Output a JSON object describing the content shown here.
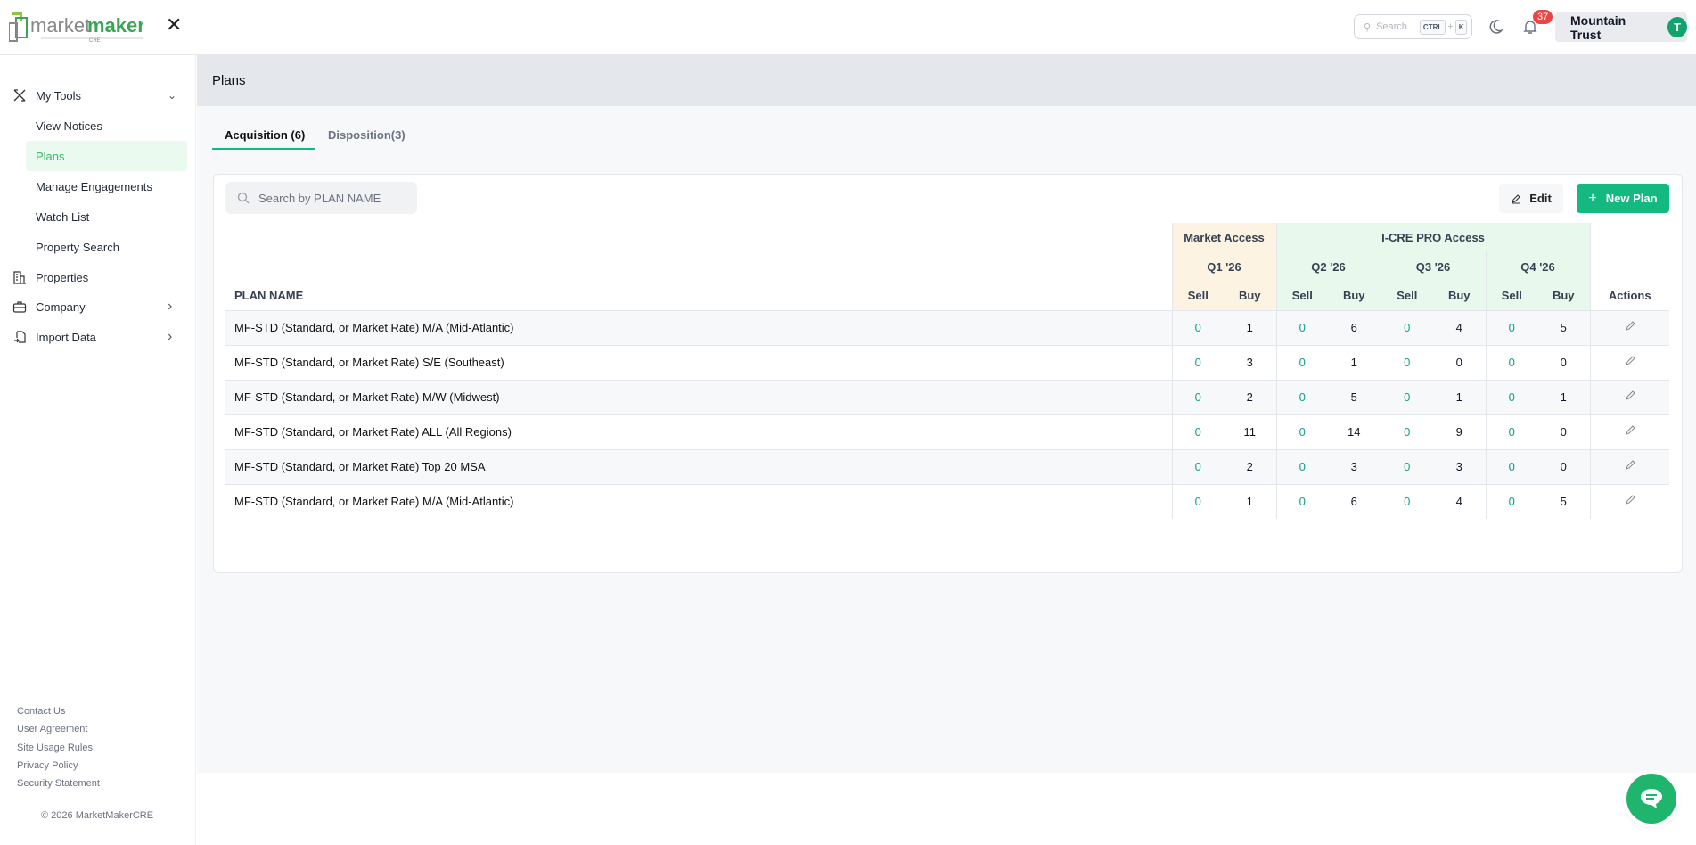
{
  "header": {
    "logo_text": "marketmaker",
    "logo_sub": "CRE",
    "search_placeholder": "Search",
    "shortcut_ctrl": "CTRL",
    "shortcut_plus": "+",
    "shortcut_key": "K",
    "notification_count": "37",
    "account_name": "Mountain Trust",
    "avatar_initial": "T"
  },
  "sidebar": {
    "items": [
      {
        "label": "My Tools",
        "icon": "tools-icon",
        "chevron": "⌄"
      },
      {
        "label": "View Notices"
      },
      {
        "label": "Plans",
        "active": true
      },
      {
        "label": "Manage Engagements"
      },
      {
        "label": "Watch List"
      },
      {
        "label": "Property Search"
      },
      {
        "label": "Properties",
        "icon": "building-icon"
      },
      {
        "label": "Company",
        "icon": "briefcase-icon",
        "chevron": "›"
      },
      {
        "label": "Import Data",
        "icon": "import-icon",
        "chevron": "›"
      }
    ],
    "footer_links": [
      "Contact Us",
      "User Agreement",
      "Site Usage Rules",
      "Privacy Policy",
      "Security Statement"
    ],
    "copyright": "© 2026 MarketMakerCRE"
  },
  "page": {
    "title": "Plans",
    "tabs": [
      {
        "label": "Acquisition (6)",
        "active": true
      },
      {
        "label": "Disposition(3)"
      }
    ],
    "search_placeholder": "Search by PLAN NAME",
    "edit_label": "Edit",
    "new_plan_label": "New Plan"
  },
  "table": {
    "col_plan": "PLAN NAME",
    "group_market": "Market Access",
    "group_pro": "I-CRE PRO Access",
    "quarters": [
      "Q1 '26",
      "Q2 '26",
      "Q3 '26",
      "Q4 '26"
    ],
    "sell": "Sell",
    "buy": "Buy",
    "actions": "Actions",
    "rows": [
      {
        "name": "MF-STD (Standard, or Market Rate) M/A (Mid-Atlantic)",
        "v": [
          "0",
          "1",
          "0",
          "6",
          "0",
          "4",
          "0",
          "5"
        ]
      },
      {
        "name": "MF-STD (Standard, or Market Rate) S/E (Southeast)",
        "v": [
          "0",
          "3",
          "0",
          "1",
          "0",
          "0",
          "0",
          "0"
        ]
      },
      {
        "name": "MF-STD (Standard, or Market Rate) M/W (Midwest)",
        "v": [
          "0",
          "2",
          "0",
          "5",
          "0",
          "1",
          "0",
          "1"
        ]
      },
      {
        "name": "MF-STD (Standard, or Market Rate) ALL (All Regions)",
        "v": [
          "0",
          "11",
          "0",
          "14",
          "0",
          "9",
          "0",
          "0"
        ]
      },
      {
        "name": "MF-STD (Standard, or Market Rate) Top 20 MSA",
        "v": [
          "0",
          "2",
          "0",
          "3",
          "0",
          "3",
          "0",
          "0"
        ]
      },
      {
        "name": "MF-STD (Standard, or Market Rate) M/A (Mid-Atlantic)",
        "v": [
          "0",
          "1",
          "0",
          "6",
          "0",
          "4",
          "0",
          "5"
        ]
      }
    ]
  },
  "colors": {
    "accent": "#13b981",
    "active_nav_bg": "#eafaef",
    "market_bg": "#fdf3e3",
    "pro_bg": "#e8f8ec",
    "badge": "#ef4444"
  }
}
